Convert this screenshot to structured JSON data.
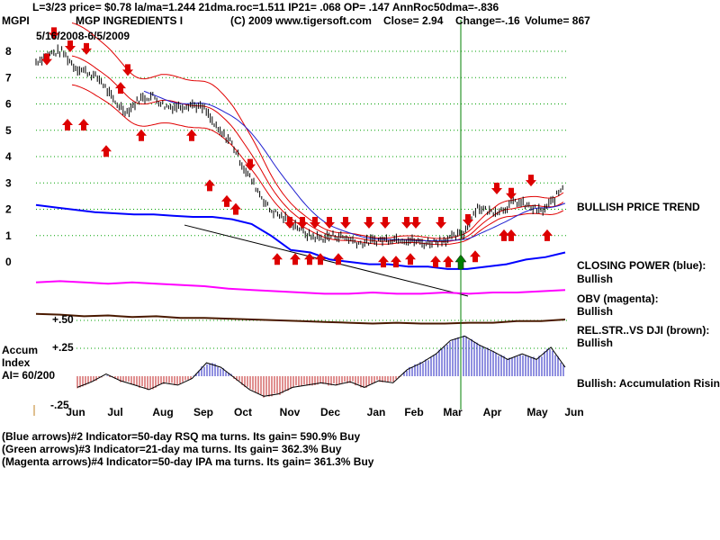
{
  "header": {
    "line1": "L=3/23  price= $0.78  la/ma=1.244 21dma.roc=1.511 IP21= .068 OP= .147 AnnRoc50dma=-.836",
    "ticker": "MGPI",
    "company": "MGP INGREDIENTS I",
    "copyright": "(C) 2009 www.tigersoft.com",
    "close": "Close=  2.94",
    "change": "Change=-.16",
    "volume": "Volume= 867",
    "date_range": "5/16/2008-6/5/2009"
  },
  "labels": {
    "bullish_price_trend": "BULLISH PRICE TREND",
    "closing_power": "CLOSING POWER (blue):",
    "closing_power_status": "Bullish",
    "obv": "OBV (magenta):",
    "obv_status": "Bullish",
    "relstr": "REL.STR..VS DJI (brown):",
    "relstr_status": "Bullish",
    "accum_rising": "Bullish: Accumulation Rising",
    "accum_title1": "Accum",
    "accum_title2": "Index",
    "accum_ai": "AI= 60/200",
    "accum_p50": "+.50",
    "accum_p25": "+.25",
    "accum_m25": "-.25"
  },
  "footer": {
    "line1": "(Blue arrows)#2 Indicator=50-day RSQ ma turns. Its gain= 590.9% Buy",
    "line2": "(Green arrows)#3 Indicator=21-day ma turns. Its gain= 362.3% Buy",
    "line3": "(Magenta arrows)#4 Indicator=50-day IPA ma turns. Its gain= 361.3% Buy"
  },
  "colors": {
    "price": "#000000",
    "ma_red": "#e00000",
    "ma_blue": "#2020d0",
    "closing_power": "#0000ff",
    "obv": "#ff00ff",
    "relstr": "#4a1a00",
    "accum_pos": "#2020c0",
    "accum_neg": "#c02020",
    "grid": "#00a000",
    "signal_line": "#008000",
    "arrows": "#dd0000"
  },
  "chart_data": {
    "type": "line",
    "y_axis": {
      "ticks": [
        "8",
        "7",
        "6",
        "5",
        "4",
        "3",
        "2",
        "1",
        "0"
      ],
      "ylim": [
        0,
        8.5
      ]
    },
    "x_axis": {
      "ticks": [
        "Jun",
        "Jul",
        "Aug",
        "Sep",
        "Oct",
        "Nov",
        "Dec",
        "Jan",
        "Feb",
        "Mar",
        "Apr",
        "May",
        "Jun"
      ]
    },
    "price_series": {
      "name": "MGPI",
      "x": [
        0,
        0.3,
        0.6,
        0.9,
        1.2,
        1.5,
        1.8,
        2.1,
        2.4,
        2.7,
        3.0,
        3.3,
        3.6,
        3.9,
        4.2,
        4.5,
        4.8,
        5.1,
        5.4,
        5.7,
        6.0,
        6.3,
        6.6,
        6.9,
        7.2,
        7.5,
        7.8,
        8.1,
        8.4,
        8.7,
        9.0,
        9.3,
        9.6,
        9.9,
        10.2,
        10.5,
        10.8,
        11.1,
        11.4,
        11.7,
        12.0,
        12.2
      ],
      "y": [
        7.6,
        7.9,
        8.0,
        7.4,
        7.2,
        6.9,
        6.1,
        5.7,
        6.2,
        6.3,
        5.9,
        5.9,
        6.0,
        5.8,
        5.0,
        4.6,
        3.6,
        2.8,
        2.0,
        1.7,
        1.4,
        1.0,
        0.9,
        1.0,
        0.9,
        0.7,
        0.8,
        0.85,
        0.9,
        0.8,
        0.7,
        0.8,
        0.9,
        1.1,
        2.1,
        1.9,
        2.0,
        2.3,
        2.1,
        1.9,
        2.4,
        2.9
      ]
    },
    "closing_power": [
      2.4,
      2.3,
      2.2,
      2.1,
      2.05,
      2.0,
      2.0,
      1.95,
      1.9,
      1.9,
      1.8,
      1.6,
      1.1,
      0.5,
      0.4,
      0.1,
      0.0,
      -0.1,
      -0.1,
      -0.2,
      -0.2,
      -0.3,
      -0.3,
      -0.2,
      -0.1,
      0.1,
      0.2,
      0.4
    ],
    "obv": [
      0.3,
      0.4,
      0.3,
      0.2,
      0.3,
      0.2,
      0.1,
      0.0,
      -0.2,
      -0.3,
      -0.4,
      -0.5,
      -0.6,
      -0.6,
      -0.5,
      -0.6,
      -0.6,
      -0.5,
      -0.6,
      -0.5,
      -0.5,
      -0.4,
      -0.3
    ],
    "accum_index": [
      -0.1,
      -0.05,
      0.02,
      -0.04,
      -0.08,
      -0.12,
      -0.06,
      -0.08,
      -0.02,
      0.12,
      0.08,
      -0.02,
      -0.12,
      -0.18,
      -0.16,
      -0.1,
      -0.08,
      -0.06,
      -0.08,
      -0.05,
      -0.1,
      -0.04,
      -0.06,
      0.06,
      0.12,
      0.2,
      0.32,
      0.36,
      0.28,
      0.22,
      0.15,
      0.2,
      0.15,
      0.26,
      0.08
    ]
  }
}
